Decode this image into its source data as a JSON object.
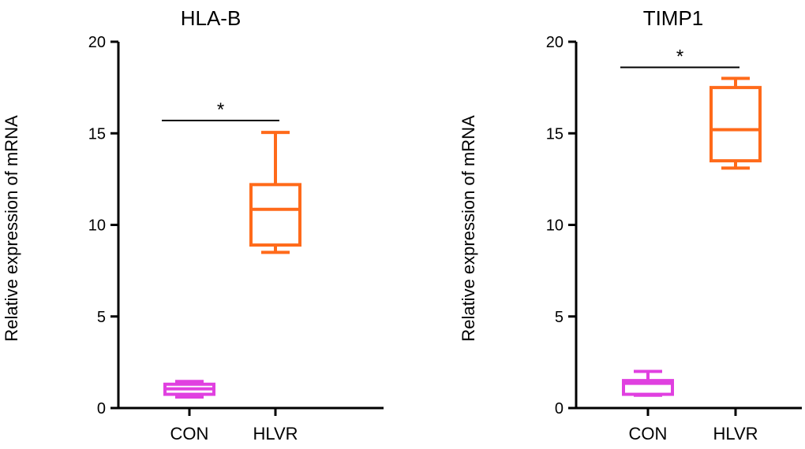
{
  "chart_data": [
    {
      "type": "box",
      "title": "HLA-B",
      "ylabel": "Relative expression of mRNA",
      "xlabel": "",
      "ylim": [
        0,
        20
      ],
      "yticks": [
        0,
        5,
        10,
        15,
        20
      ],
      "categories": [
        "CON",
        "HLVR"
      ],
      "boxes": [
        {
          "name": "CON",
          "min": 0.6,
          "q1": 0.75,
          "median": 1.05,
          "q3": 1.3,
          "max": 1.45,
          "color": "#e040e0"
        },
        {
          "name": "HLVR",
          "min": 8.5,
          "q1": 8.9,
          "median": 10.85,
          "q3": 12.2,
          "max": 15.05,
          "color": "#ff6a1a"
        }
      ],
      "significance": {
        "label": "*",
        "y": 15.7,
        "from": "CON",
        "to": "HLVR"
      }
    },
    {
      "type": "box",
      "title": "TIMP1",
      "ylabel": "Relative expression of mRNA",
      "xlabel": "",
      "ylim": [
        0,
        20
      ],
      "yticks": [
        0,
        5,
        10,
        15,
        20
      ],
      "categories": [
        "CON",
        "HLVR"
      ],
      "boxes": [
        {
          "name": "CON",
          "min": 0.7,
          "q1": 0.75,
          "median": 1.35,
          "q3": 1.5,
          "max": 2.0,
          "color": "#e040e0"
        },
        {
          "name": "HLVR",
          "min": 13.1,
          "q1": 13.5,
          "median": 15.2,
          "q3": 17.5,
          "max": 18.0,
          "color": "#ff6a1a"
        }
      ],
      "significance": {
        "label": "*",
        "y": 18.6,
        "from": "CON",
        "to": "HLVR"
      }
    }
  ]
}
